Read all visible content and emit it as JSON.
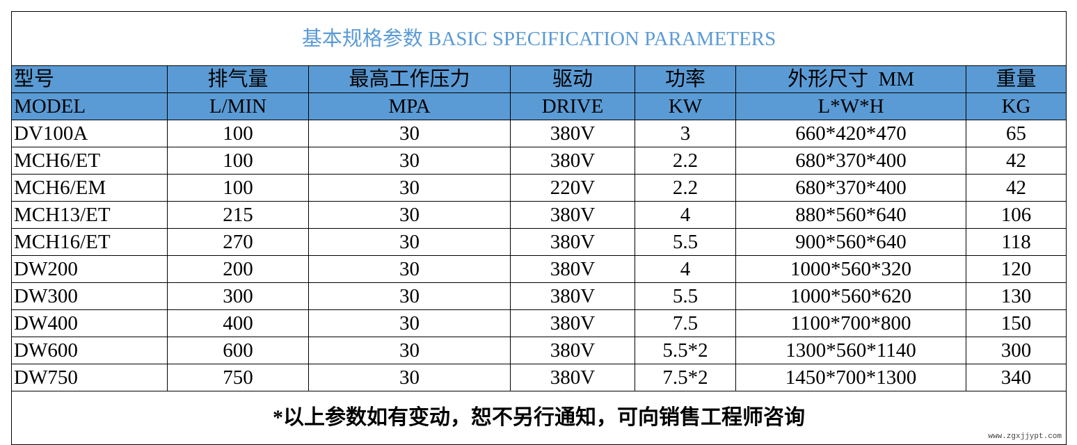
{
  "title": "基本规格参数 BASIC SPECIFICATION PARAMETERS",
  "header_rows": [
    [
      "型号",
      "排气量",
      "最高工作压力",
      "驱动",
      "功率",
      "外形尺寸  MM",
      "重量"
    ],
    [
      "MODEL",
      "L/MIN",
      "MPA",
      "DRIVE",
      "KW",
      "L*W*H",
      "KG"
    ]
  ],
  "rows": [
    [
      "DV100A",
      "100",
      "30",
      "380V",
      "3",
      "660*420*470",
      "65"
    ],
    [
      "MCH6/ET",
      "100",
      "30",
      "380V",
      "2.2",
      "680*370*400",
      "42"
    ],
    [
      "MCH6/EM",
      "100",
      "30",
      "220V",
      "2.2",
      "680*370*400",
      "42"
    ],
    [
      "MCH13/ET",
      "215",
      "30",
      "380V",
      "4",
      "880*560*640",
      "106"
    ],
    [
      "MCH16/ET",
      "270",
      "30",
      "380V",
      "5.5",
      "900*560*640",
      "118"
    ],
    [
      "DW200",
      "200",
      "30",
      "380V",
      "4",
      "1000*560*320",
      "120"
    ],
    [
      "DW300",
      "300",
      "30",
      "380V",
      "5.5",
      "1000*560*620",
      "130"
    ],
    [
      "DW400",
      "400",
      "30",
      "380V",
      "7.5",
      "1100*700*800",
      "150"
    ],
    [
      "DW600",
      "600",
      "30",
      "380V",
      "5.5*2",
      "1300*560*1140",
      "300"
    ],
    [
      "DW750",
      "750",
      "30",
      "380V",
      "7.5*2",
      "1450*700*1300",
      "340"
    ]
  ],
  "note": "*以上参数如有变动，恕不另行通知，可向销售工程师咨询",
  "source": "www.zgxjjypt.com"
}
